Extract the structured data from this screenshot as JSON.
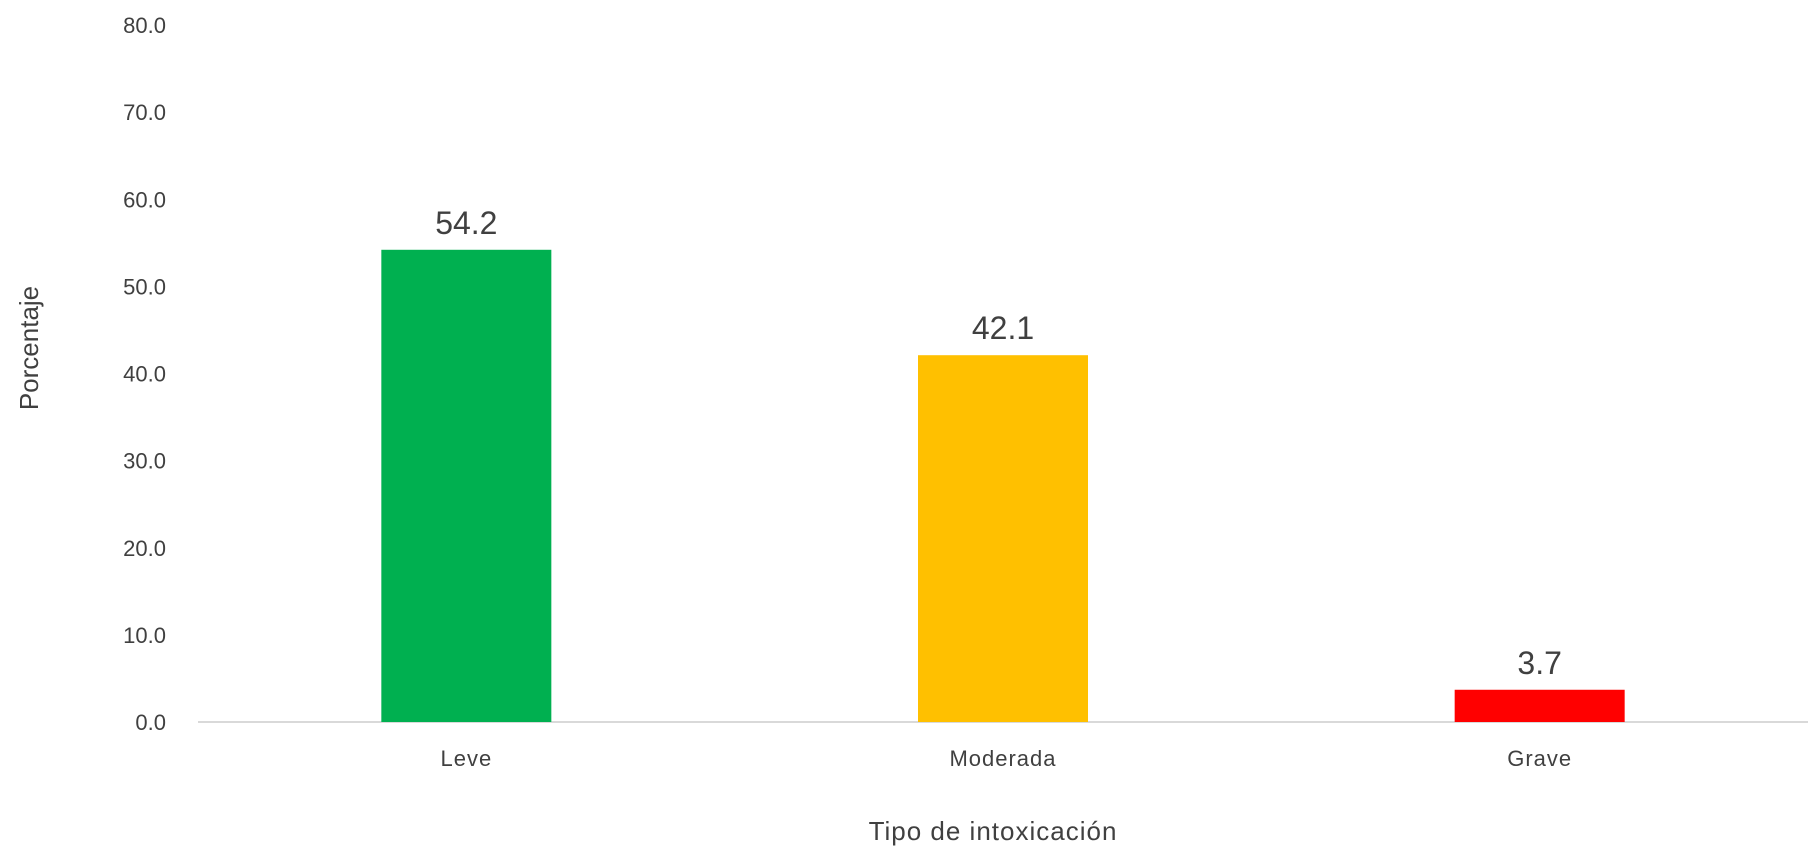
{
  "chart_data": {
    "type": "bar",
    "categories": [
      "Leve",
      "Moderada",
      "Grave"
    ],
    "values": [
      54.2,
      42.1,
      3.7
    ],
    "value_labels": [
      "54.2",
      "42.1",
      "3.7"
    ],
    "bar_colors": [
      "#00b050",
      "#ffc000",
      "#ff0000"
    ],
    "xlabel": "Tipo de intoxicación",
    "ylabel": "Porcentaje",
    "ylim": [
      0,
      80
    ],
    "y_ticks": [
      "0.0",
      "10.0",
      "20.0",
      "30.0",
      "40.0",
      "50.0",
      "60.0",
      "70.0",
      "80.0"
    ],
    "grid": false,
    "legend": "none",
    "axis_color": "#d9d9d9"
  }
}
